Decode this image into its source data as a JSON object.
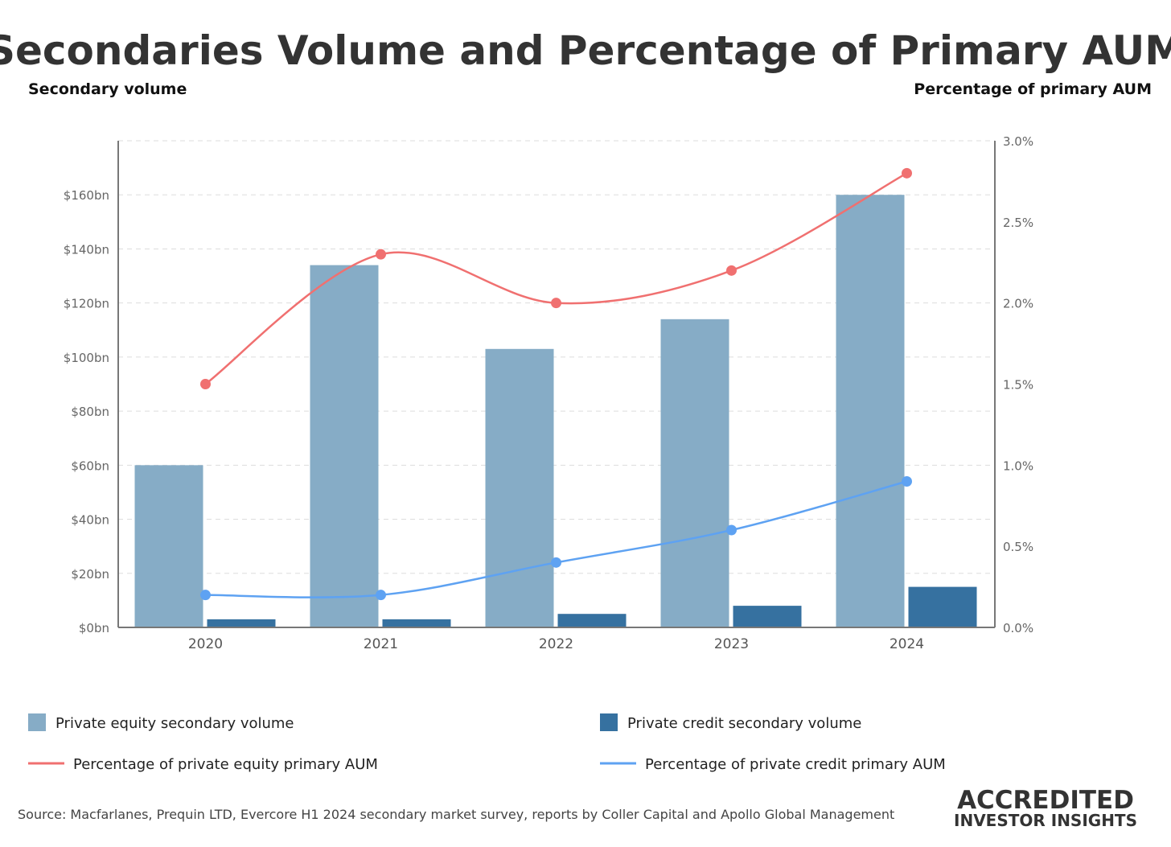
{
  "chart_data": {
    "type": "bar",
    "title": "Secondaries Volume and Percentage of Primary AUM",
    "ylabel": "Secondary volume",
    "y2label": "Percentage of primary AUM",
    "categories": [
      "2020",
      "2021",
      "2022",
      "2023",
      "2024"
    ],
    "ylim": [
      0,
      180
    ],
    "y2lim": [
      0,
      3.0
    ],
    "yticks": [
      0,
      20,
      40,
      60,
      80,
      100,
      120,
      140,
      160
    ],
    "ytick_labels": [
      "$0bn",
      "$20bn",
      "$40bn",
      "$60bn",
      "$80bn",
      "$100bn",
      "$120bn",
      "$140bn",
      "$160bn"
    ],
    "y2ticks": [
      0,
      0.5,
      1.0,
      1.5,
      2.0,
      2.5,
      3.0
    ],
    "y2tick_labels": [
      "0.0%",
      "0.5%",
      "1.0%",
      "1.5%",
      "2.0%",
      "2.5%",
      "3.0%"
    ],
    "grid": true,
    "legend_position": "bottom",
    "series": [
      {
        "name": "Private equity secondary volume",
        "type": "bar",
        "axis": "left",
        "color": "#86acc6",
        "values": [
          60,
          134,
          103,
          114,
          160
        ]
      },
      {
        "name": "Private credit secondary volume",
        "type": "bar",
        "axis": "left",
        "color": "#3671a0",
        "values": [
          3,
          3,
          5,
          8,
          15
        ]
      },
      {
        "name": "Percentage of private equity primary AUM",
        "type": "line",
        "axis": "right",
        "color": "#f07070",
        "values": [
          1.5,
          2.3,
          2.0,
          2.2,
          2.8
        ]
      },
      {
        "name": "Percentage of private credit primary AUM",
        "type": "line",
        "axis": "right",
        "color": "#5ea2f2",
        "values": [
          0.2,
          0.2,
          0.4,
          0.6,
          0.9
        ]
      }
    ],
    "source": "Source: Macfarlanes, Prequin LTD, Evercore H1 2024 secondary market survey, reports by Coller Capital and Apollo Global Management"
  },
  "logo": {
    "line1": "ACCREDITED",
    "line2": "INVESTOR INSIGHTS"
  }
}
